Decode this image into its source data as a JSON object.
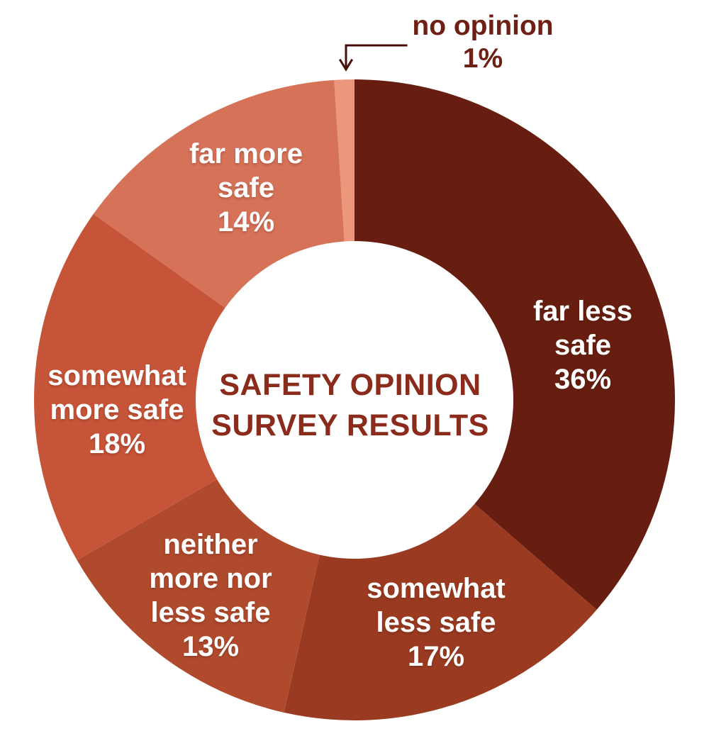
{
  "chart_data": {
    "type": "pie",
    "variant": "donut",
    "title": "SAFETY OPINION SURVEY RESULTS",
    "title_lines": [
      "SAFETY OPINION",
      "SURVEY RESULTS"
    ],
    "start_angle_deg": 0,
    "direction": "clockwise",
    "legend_position": "labels-on-slices",
    "background_color": "#ffffff",
    "title_color": "#8B2B1B",
    "label_text_color": "#ffffff",
    "callout_text_color": "#6E2014",
    "callout_arrow_color": "#431109",
    "slices": [
      {
        "label": "far less safe",
        "value": 36,
        "pct_label": "36%",
        "color": "#671E10",
        "label_lines": [
          "far less",
          "safe",
          "36%"
        ]
      },
      {
        "label": "somewhat less safe",
        "value": 17,
        "pct_label": "17%",
        "color": "#9A3A21",
        "label_lines": [
          "somewhat",
          "less safe",
          "17%"
        ]
      },
      {
        "label": "neither more nor less safe",
        "value": 13,
        "pct_label": "13%",
        "color": "#B04A2D",
        "label_lines": [
          "neither",
          "more nor",
          "less safe",
          "13%"
        ]
      },
      {
        "label": "somewhat more safe",
        "value": 18,
        "pct_label": "18%",
        "color": "#C65438",
        "label_lines": [
          "somewhat",
          "more safe",
          "18%"
        ]
      },
      {
        "label": "far more safe",
        "value": 14,
        "pct_label": "14%",
        "color": "#D67258",
        "label_lines": [
          "far more",
          "safe",
          "14%"
        ]
      },
      {
        "label": "no opinion",
        "value": 1,
        "pct_label": "1%",
        "color": "#EC977C",
        "label_lines": [
          "no opinion",
          "1%"
        ],
        "callout": true
      }
    ]
  }
}
